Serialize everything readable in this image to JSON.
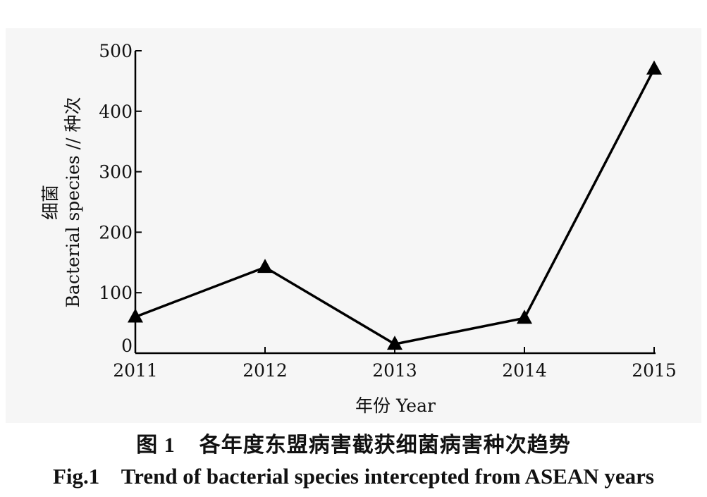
{
  "chart_data": {
    "type": "line",
    "x": [
      "2011",
      "2012",
      "2013",
      "2014",
      "2015"
    ],
    "series": [
      {
        "values": [
          60,
          142,
          15,
          58,
          470
        ],
        "marker": "triangle",
        "color": "#000000"
      }
    ],
    "xlabel": "年份 Year",
    "ylabel": "细菌 Bacterial species // 种次",
    "ylabel_lines": [
      "细菌",
      "Bacterial species // 种次"
    ],
    "yticks": [
      "0",
      "100",
      "200",
      "300",
      "400",
      "500"
    ],
    "ylim": [
      0,
      500
    ],
    "grid": false,
    "legend": "none"
  },
  "caption": {
    "zh": "图 1    各年度东盟病害截获细菌病害种次趋势",
    "en": "Fig.1    Trend of bacterial species intercepted from ASEAN years"
  }
}
